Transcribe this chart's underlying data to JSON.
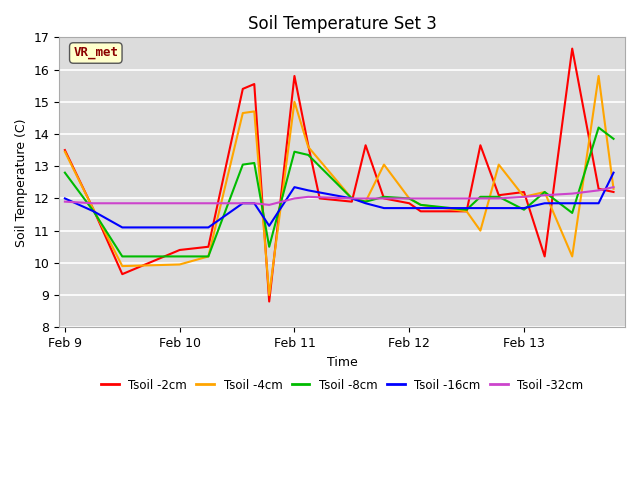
{
  "title": "Soil Temperature Set 3",
  "xlabel": "Time",
  "ylabel": "Soil Temperature (C)",
  "ylim": [
    8.0,
    17.0
  ],
  "yticks": [
    8.0,
    9.0,
    10.0,
    11.0,
    12.0,
    13.0,
    14.0,
    15.0,
    16.0,
    17.0
  ],
  "bg_color": "#dcdcdc",
  "annotation_text": "VR_met",
  "annotation_bg": "#ffffcc",
  "annotation_fg": "#8b0000",
  "series": {
    "Tsoil -2cm": {
      "color": "#ff0000",
      "x": [
        0.0,
        0.25,
        0.5,
        1.0,
        1.25,
        1.55,
        1.65,
        1.78,
        2.0,
        2.12,
        2.22,
        2.5,
        2.62,
        2.78,
        3.0,
        3.1,
        3.5,
        3.62,
        3.78,
        4.0,
        4.18,
        4.42,
        4.65,
        4.78
      ],
      "y": [
        13.5,
        11.65,
        9.65,
        10.4,
        10.5,
        15.4,
        15.55,
        8.8,
        15.8,
        13.65,
        12.0,
        11.9,
        13.65,
        12.0,
        11.85,
        11.6,
        11.6,
        13.65,
        12.1,
        12.2,
        10.2,
        16.65,
        12.3,
        12.2
      ]
    },
    "Tsoil -4cm": {
      "color": "#ffa500",
      "x": [
        0.0,
        0.25,
        0.5,
        1.0,
        1.25,
        1.55,
        1.65,
        1.78,
        2.0,
        2.12,
        2.5,
        2.62,
        2.78,
        3.0,
        3.1,
        3.5,
        3.62,
        3.78,
        4.0,
        4.18,
        4.42,
        4.65,
        4.78
      ],
      "y": [
        13.45,
        11.65,
        9.9,
        9.95,
        10.2,
        14.65,
        14.7,
        9.0,
        15.0,
        13.6,
        12.0,
        11.9,
        13.05,
        12.0,
        11.8,
        11.6,
        11.0,
        13.05,
        12.05,
        12.2,
        10.2,
        15.8,
        12.3
      ]
    },
    "Tsoil -8cm": {
      "color": "#00bb00",
      "x": [
        0.0,
        0.25,
        0.5,
        1.0,
        1.25,
        1.55,
        1.65,
        1.78,
        2.0,
        2.12,
        2.5,
        2.62,
        2.78,
        3.0,
        3.1,
        3.5,
        3.62,
        3.78,
        4.0,
        4.18,
        4.42,
        4.65,
        4.78
      ],
      "y": [
        12.8,
        11.6,
        10.2,
        10.2,
        10.2,
        13.05,
        13.1,
        10.5,
        13.45,
        13.35,
        12.0,
        11.9,
        12.05,
        12.0,
        11.8,
        11.65,
        12.05,
        12.05,
        11.65,
        12.2,
        11.55,
        14.2,
        13.85
      ]
    },
    "Tsoil -16cm": {
      "color": "#0000ff",
      "x": [
        0.0,
        0.25,
        0.5,
        1.0,
        1.25,
        1.55,
        1.65,
        1.78,
        2.0,
        2.12,
        2.5,
        2.62,
        2.78,
        3.0,
        3.1,
        3.5,
        3.62,
        3.78,
        4.0,
        4.18,
        4.42,
        4.65,
        4.78
      ],
      "y": [
        12.0,
        11.6,
        11.1,
        11.1,
        11.1,
        11.85,
        11.85,
        11.15,
        12.35,
        12.25,
        12.0,
        11.85,
        11.7,
        11.7,
        11.7,
        11.7,
        11.7,
        11.7,
        11.7,
        11.85,
        11.85,
        11.85,
        12.8
      ]
    },
    "Tsoil -32cm": {
      "color": "#cc44cc",
      "x": [
        0.0,
        0.25,
        0.5,
        1.0,
        1.25,
        1.55,
        1.65,
        1.78,
        2.0,
        2.12,
        2.5,
        2.62,
        2.78,
        3.0,
        3.1,
        3.5,
        3.62,
        3.78,
        4.0,
        4.18,
        4.42,
        4.65,
        4.78
      ],
      "y": [
        11.9,
        11.85,
        11.85,
        11.85,
        11.85,
        11.85,
        11.85,
        11.8,
        12.0,
        12.05,
        12.0,
        12.0,
        12.0,
        12.0,
        12.0,
        12.0,
        12.0,
        12.0,
        12.05,
        12.1,
        12.15,
        12.25,
        12.35
      ]
    }
  },
  "xtick_positions": [
    0,
    1,
    2,
    3,
    4
  ],
  "xtick_labels": [
    "Feb 9",
    "Feb 10",
    "Feb 11",
    "Feb 12",
    "Feb 13"
  ],
  "xlim": [
    -0.05,
    4.88
  ]
}
